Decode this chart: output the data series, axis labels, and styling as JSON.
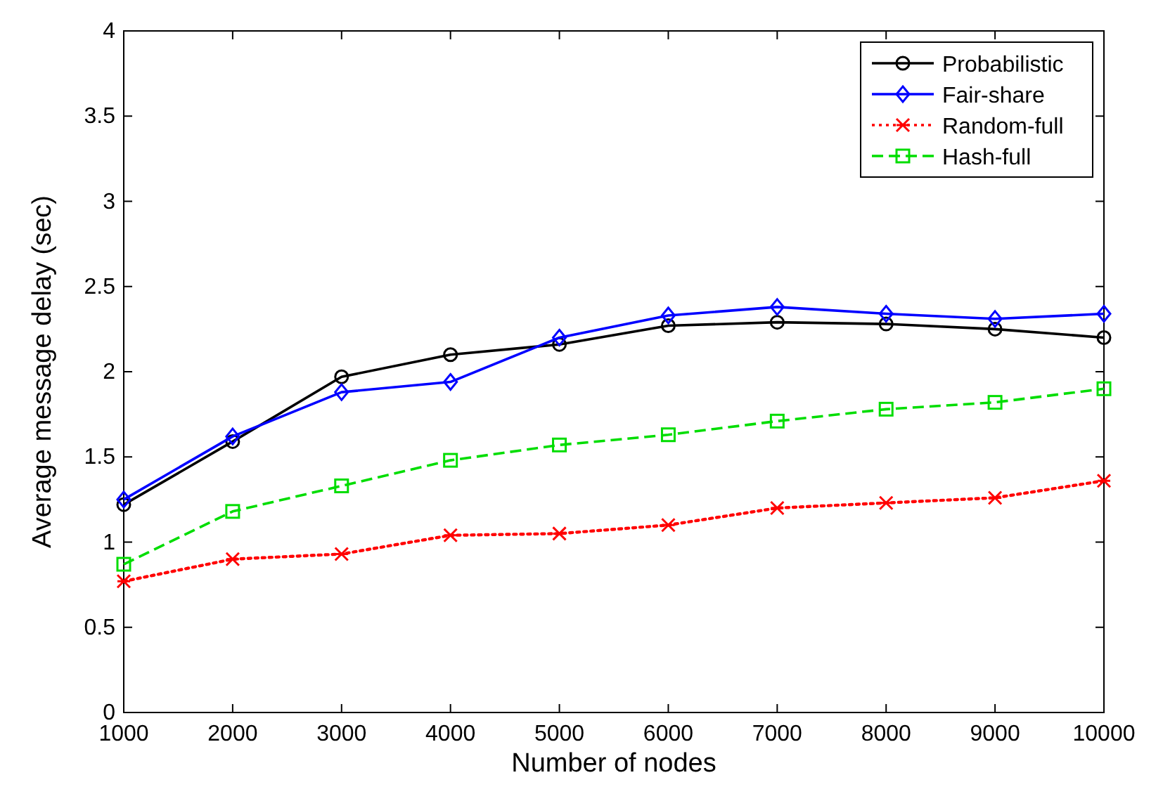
{
  "chart_data": {
    "type": "line",
    "xlabel": "Number of nodes",
    "ylabel": "Average message delay (sec)",
    "x": [
      1000,
      2000,
      3000,
      4000,
      5000,
      6000,
      7000,
      8000,
      9000,
      10000
    ],
    "xlim": [
      1000,
      10000
    ],
    "xticks": [
      1000,
      2000,
      3000,
      4000,
      5000,
      6000,
      7000,
      8000,
      9000,
      10000
    ],
    "ylim": [
      0,
      4
    ],
    "yticks": [
      0,
      0.5,
      1,
      1.5,
      2,
      2.5,
      3,
      3.5,
      4
    ],
    "grid": false,
    "legend": "top right",
    "series": [
      {
        "name": "Probabilistic",
        "color": "#000000",
        "marker": "circle",
        "line_style": "solid",
        "values": [
          1.22,
          1.59,
          1.97,
          2.1,
          2.16,
          2.27,
          2.29,
          2.28,
          2.25,
          2.2
        ]
      },
      {
        "name": "Fair-share",
        "color": "#0000ff",
        "marker": "diamond",
        "line_style": "solid",
        "values": [
          1.25,
          1.62,
          1.88,
          1.94,
          2.2,
          2.33,
          2.38,
          2.34,
          2.31,
          2.34
        ]
      },
      {
        "name": "Random-full",
        "color": "#ff0000",
        "marker": "cross",
        "line_style": "dotted",
        "values": [
          0.77,
          0.9,
          0.93,
          1.04,
          1.05,
          1.1,
          1.2,
          1.23,
          1.26,
          1.36
        ]
      },
      {
        "name": "Hash-full",
        "color": "#00dd00",
        "marker": "square",
        "line_style": "dashed",
        "values": [
          0.87,
          1.18,
          1.33,
          1.48,
          1.57,
          1.63,
          1.71,
          1.78,
          1.82,
          1.9
        ]
      }
    ]
  }
}
